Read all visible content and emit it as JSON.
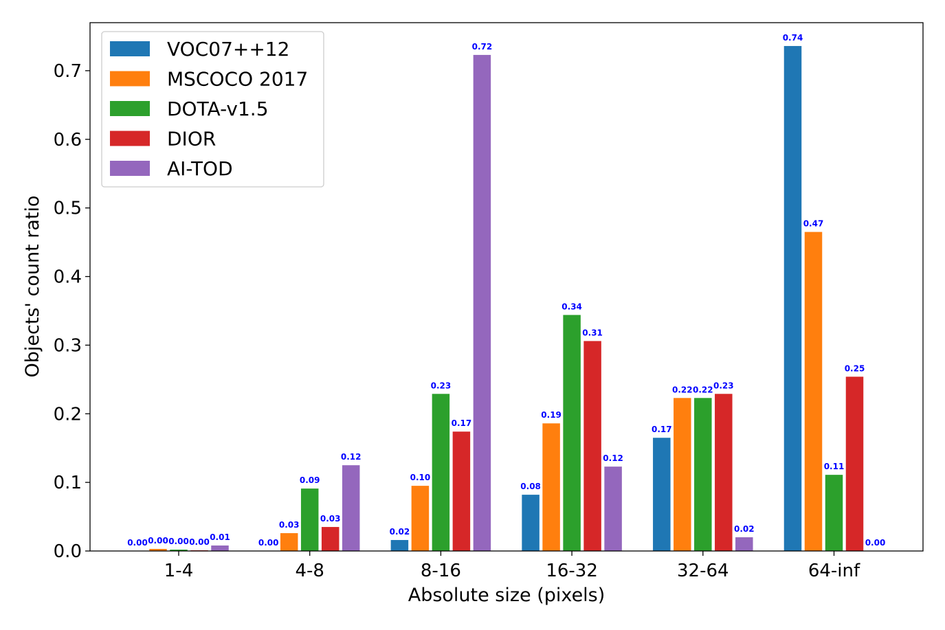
{
  "chart_data": {
    "type": "bar",
    "title": "",
    "xlabel": "Absolute size (pixels)",
    "ylabel": "Objects' count ratio",
    "ylim": [
      0,
      0.77
    ],
    "yticks": [
      "0.0",
      "0.1",
      "0.2",
      "0.3",
      "0.4",
      "0.5",
      "0.6",
      "0.7"
    ],
    "categories": [
      "1-4",
      "4-8",
      "8-16",
      "16-32",
      "32-64",
      "64-inf"
    ],
    "legend_position": "top-left",
    "grid": false,
    "series": [
      {
        "name": "VOC07++12",
        "color": "#1f77b4",
        "values": [
          0.0,
          0.0,
          0.016,
          0.082,
          0.165,
          0.736
        ],
        "labels": [
          "0.00",
          "0.00",
          "0.02",
          "0.08",
          "0.17",
          "0.74"
        ]
      },
      {
        "name": "MSCOCO 2017",
        "color": "#ff7f0e",
        "values": [
          0.003,
          0.026,
          0.095,
          0.186,
          0.223,
          0.465
        ],
        "labels": [
          "0.00",
          "0.03",
          "0.10",
          "0.19",
          "0.22",
          "0.47"
        ]
      },
      {
        "name": "DOTA-v1.5",
        "color": "#2ca02c",
        "values": [
          0.002,
          0.091,
          0.229,
          0.344,
          0.223,
          0.111
        ],
        "labels": [
          "0.00",
          "0.09",
          "0.23",
          "0.34",
          "0.22",
          "0.11"
        ]
      },
      {
        "name": "DIOR",
        "color": "#d62728",
        "values": [
          0.001,
          0.035,
          0.174,
          0.306,
          0.229,
          0.254
        ],
        "labels": [
          "0.00",
          "0.03",
          "0.17",
          "0.31",
          "0.23",
          "0.25"
        ]
      },
      {
        "name": "AI-TOD",
        "color": "#9467bd",
        "values": [
          0.008,
          0.125,
          0.723,
          0.123,
          0.02,
          0.0
        ],
        "labels": [
          "0.01",
          "0.12",
          "0.72",
          "0.12",
          "0.02",
          "0.00"
        ]
      }
    ]
  }
}
